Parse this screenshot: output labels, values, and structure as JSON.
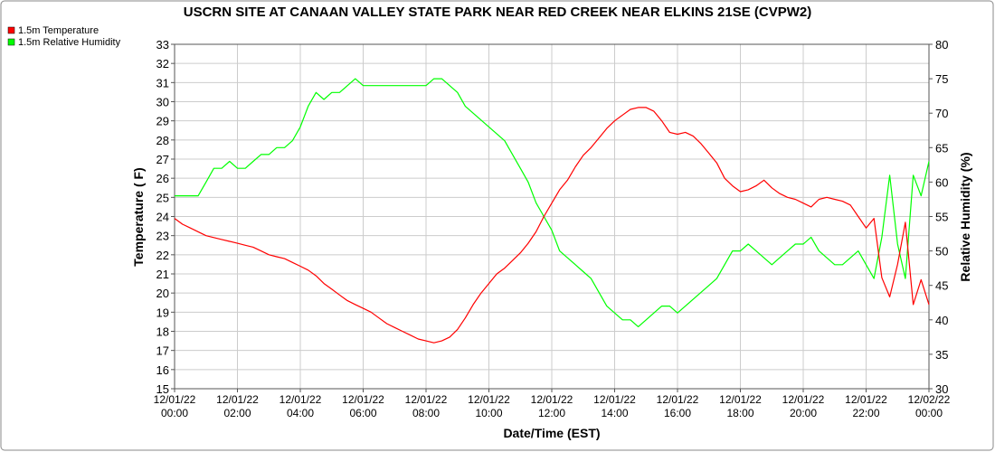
{
  "chart_data": {
    "type": "line",
    "title": "USCRN SITE AT CANAAN VALLEY STATE PARK NEAR RED CREEK NEAR ELKINS 21SE (CVPW2)",
    "xlabel": "Date/Time (EST)",
    "ylabel_left": "Temperature ( F)",
    "ylabel_right": "Relative Humidity (%)",
    "x_ticks": [
      {
        "hour": 0,
        "date": "12/01/22",
        "time": "00:00"
      },
      {
        "hour": 2,
        "date": "12/01/22",
        "time": "02:00"
      },
      {
        "hour": 4,
        "date": "12/01/22",
        "time": "04:00"
      },
      {
        "hour": 6,
        "date": "12/01/22",
        "time": "06:00"
      },
      {
        "hour": 8,
        "date": "12/01/22",
        "time": "08:00"
      },
      {
        "hour": 10,
        "date": "12/01/22",
        "time": "10:00"
      },
      {
        "hour": 12,
        "date": "12/01/22",
        "time": "12:00"
      },
      {
        "hour": 14,
        "date": "12/01/22",
        "time": "14:00"
      },
      {
        "hour": 16,
        "date": "12/01/22",
        "time": "16:00"
      },
      {
        "hour": 18,
        "date": "12/01/22",
        "time": "18:00"
      },
      {
        "hour": 20,
        "date": "12/01/22",
        "time": "20:00"
      },
      {
        "hour": 22,
        "date": "12/01/22",
        "time": "22:00"
      },
      {
        "hour": 24,
        "date": "12/02/22",
        "time": "00:00"
      }
    ],
    "xlim_hours": [
      0,
      24
    ],
    "ylim_left": [
      15,
      33
    ],
    "yticks_left": [
      15,
      16,
      17,
      18,
      19,
      20,
      21,
      22,
      23,
      24,
      25,
      26,
      27,
      28,
      29,
      30,
      31,
      32,
      33
    ],
    "ylim_right": [
      30,
      80
    ],
    "yticks_right": [
      30,
      35,
      40,
      45,
      50,
      55,
      60,
      65,
      70,
      75,
      80
    ],
    "grid": true,
    "legend_position": "top-left, outside plot",
    "series": [
      {
        "name": "1.5m Temperature",
        "axis": "left",
        "color": "#ff0000",
        "points": [
          [
            0,
            23.9
          ],
          [
            0.25,
            23.6
          ],
          [
            0.5,
            23.4
          ],
          [
            0.75,
            23.2
          ],
          [
            1,
            23.0
          ],
          [
            1.25,
            22.9
          ],
          [
            1.5,
            22.8
          ],
          [
            1.75,
            22.7
          ],
          [
            2,
            22.6
          ],
          [
            2.25,
            22.5
          ],
          [
            2.5,
            22.4
          ],
          [
            2.75,
            22.2
          ],
          [
            3,
            22.0
          ],
          [
            3.25,
            21.9
          ],
          [
            3.5,
            21.8
          ],
          [
            3.75,
            21.6
          ],
          [
            4,
            21.4
          ],
          [
            4.25,
            21.2
          ],
          [
            4.5,
            20.9
          ],
          [
            4.75,
            20.5
          ],
          [
            5,
            20.2
          ],
          [
            5.25,
            19.9
          ],
          [
            5.5,
            19.6
          ],
          [
            5.75,
            19.4
          ],
          [
            6,
            19.2
          ],
          [
            6.25,
            19.0
          ],
          [
            6.5,
            18.7
          ],
          [
            6.75,
            18.4
          ],
          [
            7,
            18.2
          ],
          [
            7.25,
            18.0
          ],
          [
            7.5,
            17.8
          ],
          [
            7.75,
            17.6
          ],
          [
            8,
            17.5
          ],
          [
            8.25,
            17.4
          ],
          [
            8.5,
            17.5
          ],
          [
            8.75,
            17.7
          ],
          [
            9,
            18.1
          ],
          [
            9.25,
            18.7
          ],
          [
            9.5,
            19.4
          ],
          [
            9.75,
            20.0
          ],
          [
            10,
            20.5
          ],
          [
            10.25,
            21.0
          ],
          [
            10.5,
            21.3
          ],
          [
            10.75,
            21.7
          ],
          [
            11,
            22.1
          ],
          [
            11.25,
            22.6
          ],
          [
            11.5,
            23.2
          ],
          [
            11.75,
            24.0
          ],
          [
            12,
            24.7
          ],
          [
            12.25,
            25.4
          ],
          [
            12.5,
            25.9
          ],
          [
            12.75,
            26.6
          ],
          [
            13,
            27.2
          ],
          [
            13.25,
            27.6
          ],
          [
            13.5,
            28.1
          ],
          [
            13.75,
            28.6
          ],
          [
            14,
            29.0
          ],
          [
            14.25,
            29.3
          ],
          [
            14.5,
            29.6
          ],
          [
            14.75,
            29.7
          ],
          [
            15,
            29.7
          ],
          [
            15.25,
            29.5
          ],
          [
            15.5,
            29.0
          ],
          [
            15.75,
            28.4
          ],
          [
            16,
            28.3
          ],
          [
            16.25,
            28.4
          ],
          [
            16.5,
            28.2
          ],
          [
            16.75,
            27.8
          ],
          [
            17,
            27.3
          ],
          [
            17.25,
            26.8
          ],
          [
            17.5,
            26.0
          ],
          [
            17.75,
            25.6
          ],
          [
            18,
            25.3
          ],
          [
            18.25,
            25.4
          ],
          [
            18.5,
            25.6
          ],
          [
            18.75,
            25.9
          ],
          [
            19,
            25.5
          ],
          [
            19.25,
            25.2
          ],
          [
            19.5,
            25.0
          ],
          [
            19.75,
            24.9
          ],
          [
            20,
            24.7
          ],
          [
            20.25,
            24.5
          ],
          [
            20.5,
            24.9
          ],
          [
            20.75,
            25.0
          ],
          [
            21,
            24.9
          ],
          [
            21.25,
            24.8
          ],
          [
            21.5,
            24.6
          ],
          [
            21.75,
            24.0
          ],
          [
            22,
            23.4
          ],
          [
            22.25,
            23.9
          ],
          [
            22.5,
            20.8
          ],
          [
            22.75,
            19.8
          ],
          [
            23,
            21.5
          ],
          [
            23.25,
            23.7
          ],
          [
            23.5,
            19.4
          ],
          [
            23.75,
            20.7
          ],
          [
            24,
            19.4
          ]
        ]
      },
      {
        "name": "1.5m Relative Humidity",
        "axis": "right",
        "color": "#00ff00",
        "points": [
          [
            0,
            58
          ],
          [
            0.25,
            58
          ],
          [
            0.5,
            58
          ],
          [
            0.75,
            58
          ],
          [
            1,
            60
          ],
          [
            1.25,
            62
          ],
          [
            1.5,
            62
          ],
          [
            1.75,
            63
          ],
          [
            2,
            62
          ],
          [
            2.25,
            62
          ],
          [
            2.5,
            63
          ],
          [
            2.75,
            64
          ],
          [
            3,
            64
          ],
          [
            3.25,
            65
          ],
          [
            3.5,
            65
          ],
          [
            3.75,
            66
          ],
          [
            4,
            68
          ],
          [
            4.25,
            71
          ],
          [
            4.5,
            73
          ],
          [
            4.75,
            72
          ],
          [
            5,
            73
          ],
          [
            5.25,
            73
          ],
          [
            5.5,
            74
          ],
          [
            5.75,
            75
          ],
          [
            6,
            74
          ],
          [
            6.25,
            74
          ],
          [
            6.5,
            74
          ],
          [
            6.75,
            74
          ],
          [
            7,
            74
          ],
          [
            7.25,
            74
          ],
          [
            7.5,
            74
          ],
          [
            7.75,
            74
          ],
          [
            8,
            74
          ],
          [
            8.25,
            75
          ],
          [
            8.5,
            75
          ],
          [
            8.75,
            74
          ],
          [
            9,
            73
          ],
          [
            9.25,
            71
          ],
          [
            9.5,
            70
          ],
          [
            9.75,
            69
          ],
          [
            10,
            68
          ],
          [
            10.25,
            67
          ],
          [
            10.5,
            66
          ],
          [
            10.75,
            64
          ],
          [
            11,
            62
          ],
          [
            11.25,
            60
          ],
          [
            11.5,
            57
          ],
          [
            11.75,
            55
          ],
          [
            12,
            53
          ],
          [
            12.25,
            50
          ],
          [
            12.5,
            49
          ],
          [
            12.75,
            48
          ],
          [
            13,
            47
          ],
          [
            13.25,
            46
          ],
          [
            13.5,
            44
          ],
          [
            13.75,
            42
          ],
          [
            14,
            41
          ],
          [
            14.25,
            40
          ],
          [
            14.5,
            40
          ],
          [
            14.75,
            39
          ],
          [
            15,
            40
          ],
          [
            15.25,
            41
          ],
          [
            15.5,
            42
          ],
          [
            15.75,
            42
          ],
          [
            16,
            41
          ],
          [
            16.25,
            42
          ],
          [
            16.5,
            43
          ],
          [
            16.75,
            44
          ],
          [
            17,
            45
          ],
          [
            17.25,
            46
          ],
          [
            17.5,
            48
          ],
          [
            17.75,
            50
          ],
          [
            18,
            50
          ],
          [
            18.25,
            51
          ],
          [
            18.5,
            50
          ],
          [
            18.75,
            49
          ],
          [
            19,
            48
          ],
          [
            19.25,
            49
          ],
          [
            19.5,
            50
          ],
          [
            19.75,
            51
          ],
          [
            20,
            51
          ],
          [
            20.25,
            52
          ],
          [
            20.5,
            50
          ],
          [
            20.75,
            49
          ],
          [
            21,
            48
          ],
          [
            21.25,
            48
          ],
          [
            21.5,
            49
          ],
          [
            21.75,
            50
          ],
          [
            22,
            48
          ],
          [
            22.25,
            46
          ],
          [
            22.5,
            52
          ],
          [
            22.75,
            61
          ],
          [
            23,
            51
          ],
          [
            23.25,
            46
          ],
          [
            23.5,
            61
          ],
          [
            23.75,
            58
          ],
          [
            24,
            63
          ]
        ]
      }
    ]
  }
}
